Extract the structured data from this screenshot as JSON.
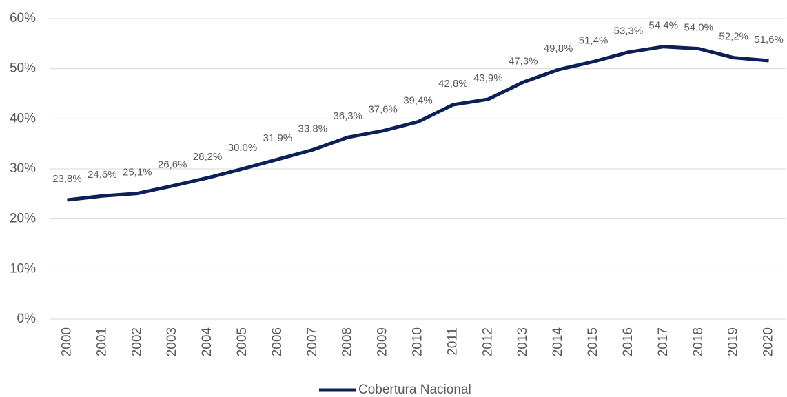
{
  "chart_data": {
    "type": "line",
    "categories": [
      "2000",
      "2001",
      "2002",
      "2003",
      "2004",
      "2005",
      "2006",
      "2007",
      "2008",
      "2009",
      "2010",
      "2011",
      "2012",
      "2013",
      "2014",
      "2015",
      "2016",
      "2017",
      "2018",
      "2019",
      "2020"
    ],
    "series": [
      {
        "name": "Cobertura Nacional",
        "color": "#0c1f57",
        "values": [
          23.8,
          24.6,
          25.1,
          26.6,
          28.2,
          30.0,
          31.9,
          33.8,
          36.3,
          37.6,
          39.4,
          42.8,
          43.9,
          47.3,
          49.8,
          51.4,
          53.3,
          54.4,
          54.0,
          52.2,
          51.6
        ],
        "value_labels": [
          "23,8%",
          "24,6%",
          "25,1%",
          "26,6%",
          "28,2%",
          "30,0%",
          "31,9%",
          "33,8%",
          "36,3%",
          "37,6%",
          "39,4%",
          "42,8%",
          "43,9%",
          "47,3%",
          "49,8%",
          "51,4%",
          "53,3%",
          "54,4%",
          "54,0%",
          "52,2%",
          "51,6%"
        ]
      }
    ],
    "ylim": [
      0,
      60
    ],
    "yticks": [
      {
        "value": 0,
        "label": "0%"
      },
      {
        "value": 10,
        "label": "10%"
      },
      {
        "value": 20,
        "label": "20%"
      },
      {
        "value": 30,
        "label": "30%"
      },
      {
        "value": 40,
        "label": "40%"
      },
      {
        "value": 50,
        "label": "50%"
      },
      {
        "value": 60,
        "label": "60%"
      }
    ],
    "grid": true,
    "legend": "bottom"
  }
}
